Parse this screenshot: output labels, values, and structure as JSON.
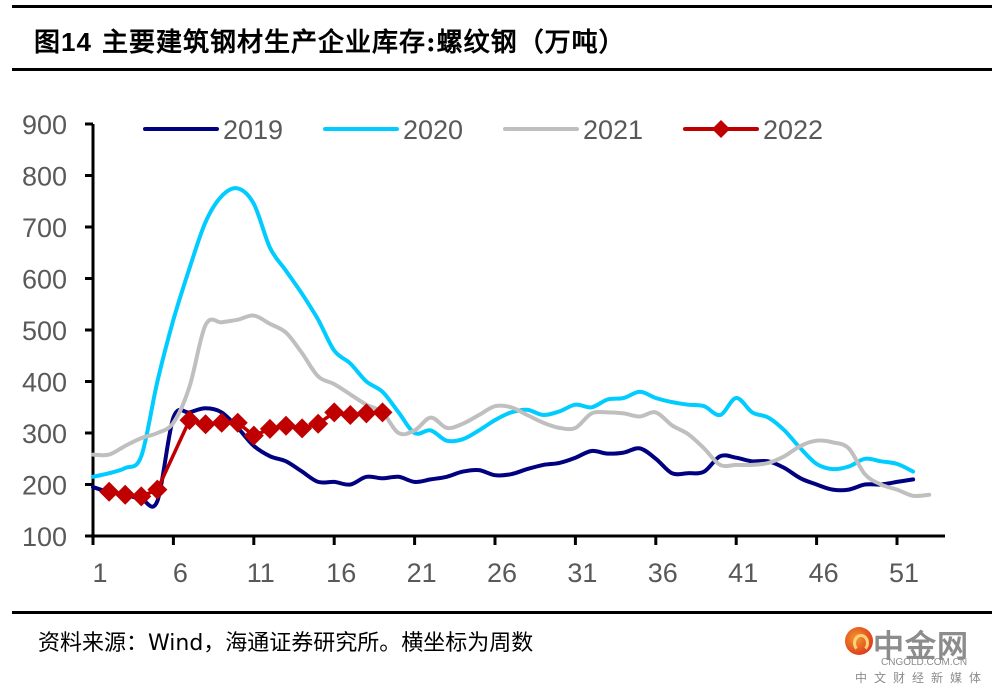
{
  "title": {
    "prefix": "图",
    "number": "14",
    "text": " 主要建筑钢材生产企业库存:螺纹钢（万吨）"
  },
  "source_note": "资料来源：Wind，海通证券研究所。横坐标为周数",
  "watermark": {
    "name": "中金网",
    "domain": "CNGOLD.COM.CN",
    "tagline": "中文财经新媒体"
  },
  "chart_data": {
    "type": "line",
    "title": "主要建筑钢材生产企业库存:螺纹钢（万吨）",
    "xlabel": "周数",
    "ylabel": "万吨",
    "ylim": [
      100,
      900
    ],
    "yticks": [
      100,
      200,
      300,
      400,
      500,
      600,
      700,
      800,
      900
    ],
    "xlim": [
      1,
      53
    ],
    "xticks": [
      1,
      6,
      11,
      16,
      21,
      26,
      31,
      36,
      41,
      46,
      51
    ],
    "grid": false,
    "legend_position": "top",
    "series": [
      {
        "name": "2019",
        "color": "#000080",
        "marker": "none",
        "x": [
          1,
          2,
          3,
          4,
          5,
          6,
          7,
          8,
          9,
          10,
          11,
          12,
          13,
          14,
          15,
          16,
          17,
          18,
          19,
          20,
          21,
          22,
          23,
          24,
          25,
          26,
          27,
          28,
          29,
          30,
          31,
          32,
          33,
          34,
          35,
          36,
          37,
          38,
          39,
          40,
          41,
          42,
          43,
          44,
          45,
          46,
          47,
          48,
          49,
          50,
          51,
          52
        ],
        "values": [
          195,
          185,
          180,
          172,
          168,
          330,
          340,
          348,
          340,
          310,
          275,
          255,
          245,
          225,
          205,
          205,
          200,
          215,
          212,
          215,
          205,
          210,
          215,
          225,
          228,
          218,
          220,
          230,
          238,
          242,
          252,
          265,
          260,
          262,
          270,
          250,
          222,
          222,
          225,
          255,
          252,
          245,
          245,
          232,
          212,
          200,
          190,
          190,
          200,
          200,
          205,
          210
        ]
      },
      {
        "name": "2020",
        "color": "#00CCFF",
        "marker": "none",
        "x": [
          1,
          2,
          3,
          4,
          5,
          6,
          7,
          8,
          9,
          10,
          11,
          12,
          13,
          14,
          15,
          16,
          17,
          18,
          19,
          20,
          21,
          22,
          23,
          24,
          25,
          26,
          27,
          28,
          29,
          30,
          31,
          32,
          33,
          34,
          35,
          36,
          37,
          38,
          39,
          40,
          41,
          42,
          43,
          44,
          45,
          46,
          47,
          48,
          49,
          50,
          51,
          52
        ],
        "values": [
          215,
          222,
          232,
          255,
          400,
          520,
          620,
          710,
          760,
          775,
          745,
          660,
          615,
          570,
          520,
          460,
          435,
          400,
          380,
          340,
          300,
          305,
          285,
          288,
          305,
          325,
          340,
          345,
          335,
          342,
          355,
          350,
          365,
          368,
          380,
          368,
          360,
          355,
          352,
          335,
          368,
          340,
          330,
          305,
          270,
          240,
          230,
          235,
          250,
          245,
          240,
          225
        ]
      },
      {
        "name": "2021",
        "color": "#BFBFBF",
        "marker": "none",
        "x": [
          1,
          2,
          3,
          4,
          5,
          6,
          7,
          8,
          9,
          10,
          11,
          12,
          13,
          14,
          15,
          16,
          17,
          18,
          19,
          20,
          21,
          22,
          23,
          24,
          25,
          26,
          27,
          28,
          29,
          30,
          31,
          32,
          33,
          34,
          35,
          36,
          37,
          38,
          39,
          40,
          41,
          42,
          43,
          44,
          45,
          46,
          47,
          48,
          49,
          50,
          51,
          52,
          53
        ],
        "values": [
          258,
          258,
          275,
          290,
          300,
          320,
          390,
          510,
          515,
          520,
          528,
          512,
          495,
          455,
          410,
          395,
          375,
          355,
          340,
          300,
          305,
          330,
          310,
          318,
          335,
          352,
          350,
          335,
          320,
          310,
          310,
          338,
          340,
          338,
          332,
          340,
          315,
          298,
          270,
          238,
          238,
          238,
          242,
          255,
          275,
          285,
          282,
          270,
          220,
          200,
          190,
          178,
          180
        ]
      },
      {
        "name": "2022",
        "color": "#C00000",
        "marker": "diamond",
        "x": [
          2,
          3,
          4,
          5,
          7,
          8,
          9,
          10,
          11,
          12,
          13,
          14,
          15,
          16,
          17,
          18,
          19
        ],
        "values": [
          186,
          180,
          177,
          190,
          325,
          317,
          320,
          320,
          295,
          308,
          314,
          309,
          318,
          340,
          335,
          338,
          340
        ]
      }
    ]
  }
}
